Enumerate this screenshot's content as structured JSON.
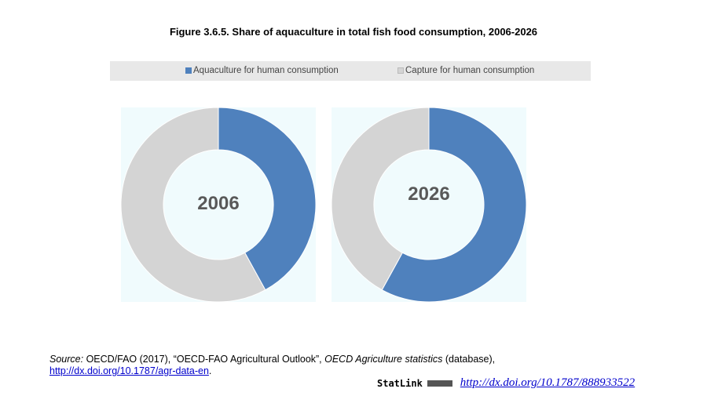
{
  "title": "Figure 3.6.5. Share of aquaculture in total fish food consumption, 2006-2026",
  "chart_data": [
    {
      "type": "pie",
      "variant": "donut",
      "center_label": "2006",
      "legend": "top",
      "categories": [
        "Aquaculture for human consumption",
        "Capture for human consumption"
      ],
      "values": [
        42,
        58
      ],
      "colors": [
        "#4f81bd",
        "#d4d4d4"
      ]
    },
    {
      "type": "pie",
      "variant": "donut",
      "center_label": "2026",
      "legend": "top",
      "categories": [
        "Aquaculture for human consumption",
        "Capture for human consumption"
      ],
      "values": [
        58,
        42
      ],
      "colors": [
        "#4f81bd",
        "#d4d4d4"
      ]
    }
  ],
  "legend": {
    "items": [
      "Aquaculture for human consumption",
      "Capture for human consumption"
    ]
  },
  "source": {
    "label": "Source:",
    "text1": " OECD/FAO (2017), “OECD-FAO Agricultural Outlook”, ",
    "italic": "OECD Agriculture statistics",
    "text2": " (database),",
    "link": "http://dx.doi.org/10.1787/agr-data-en",
    "end": "."
  },
  "statlink": {
    "label": "StatLink",
    "url": "http://dx.doi.org/10.1787/888933522"
  }
}
